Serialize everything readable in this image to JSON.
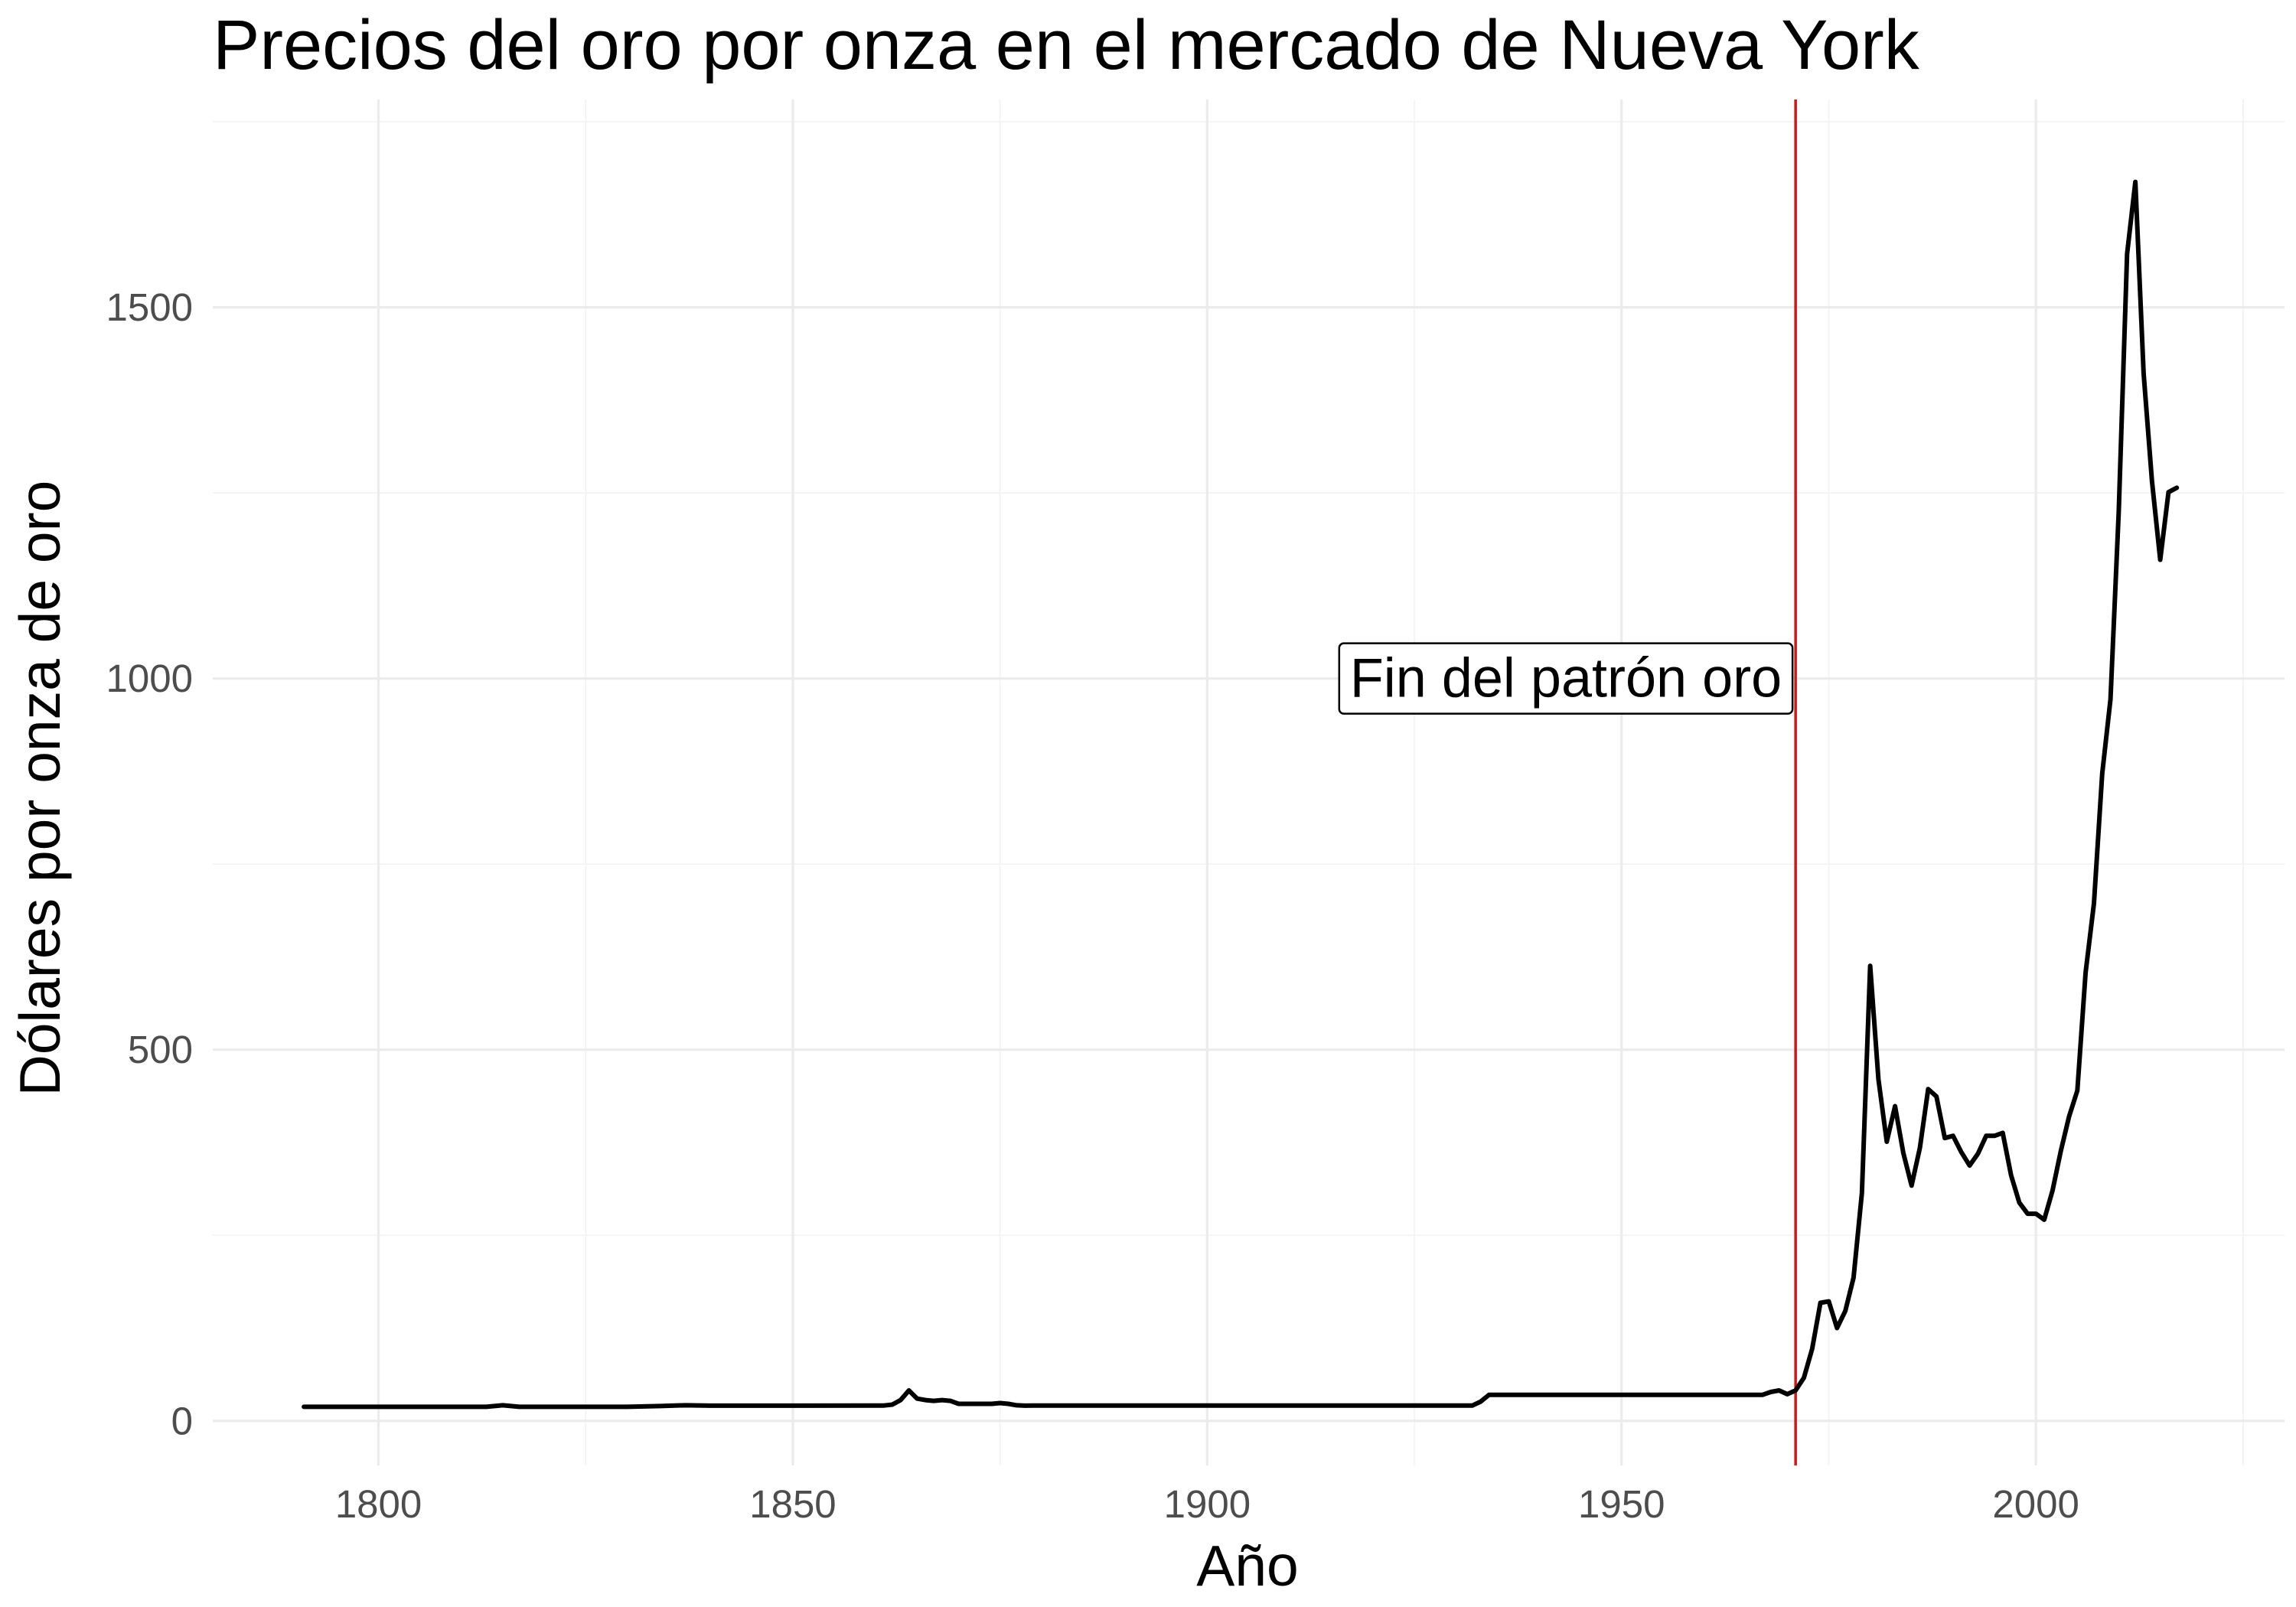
{
  "chart_data": {
    "type": "line",
    "title": "Precios del oro por onza en el mercado de Nueva York",
    "xlabel": "Año",
    "ylabel": "Dólares por onza de oro",
    "xlim": [
      1780,
      2030
    ],
    "ylim": [
      -60,
      1780
    ],
    "x_ticks": [
      1800,
      1850,
      1900,
      1950,
      2000
    ],
    "y_ticks": [
      0,
      500,
      1000,
      1500
    ],
    "x_tick_labels": [
      "1800",
      "1850",
      "1900",
      "1950",
      "2000"
    ],
    "y_tick_labels": [
      "0",
      "500",
      "1000",
      "1500"
    ],
    "grid": true,
    "colors": {
      "line": "#000000",
      "vline": "#dd1111",
      "grid": "#ebebeb"
    },
    "reference_line": {
      "x": 1971,
      "label": "Fin del patrón oro",
      "label_y": 1000
    },
    "series": [
      {
        "x": [
          1791,
          1800,
          1810,
          1813,
          1815,
          1817,
          1820,
          1830,
          1834,
          1837,
          1840,
          1850,
          1861,
          1862,
          1863,
          1864,
          1865,
          1866,
          1867,
          1868,
          1869,
          1870,
          1871,
          1872,
          1873,
          1874,
          1875,
          1876,
          1877,
          1878,
          1879,
          1880,
          1890,
          1900,
          1910,
          1920,
          1930,
          1932,
          1933,
          1934,
          1935,
          1940,
          1950,
          1960,
          1967,
          1968,
          1969,
          1970,
          1971,
          1972,
          1973,
          1974,
          1975,
          1976,
          1977,
          1978,
          1979,
          1980,
          1981,
          1982,
          1983,
          1984,
          1985,
          1986,
          1987,
          1988,
          1989,
          1990,
          1991,
          1992,
          1993,
          1994,
          1995,
          1996,
          1997,
          1998,
          1999,
          2000,
          2001,
          2002,
          2003,
          2004,
          2005,
          2006,
          2007,
          2008,
          2009,
          2010,
          2011,
          2012,
          2013,
          2014,
          2015,
          2016,
          2017
        ],
        "y": [
          19,
          19,
          19,
          19,
          21,
          19,
          19,
          19,
          20,
          21,
          20.5,
          20.5,
          20.7,
          22,
          28,
          41,
          30,
          28,
          27,
          28,
          27,
          23,
          23,
          23,
          23,
          23,
          24,
          23,
          21,
          20.5,
          20.7,
          20.7,
          20.7,
          20.7,
          20.7,
          20.7,
          20.7,
          20.7,
          26,
          35,
          35,
          35,
          35,
          35,
          35,
          39,
          41,
          36,
          41,
          58,
          97,
          159,
          161,
          125,
          148,
          193,
          307,
          613,
          460,
          376,
          424,
          361,
          317,
          368,
          447,
          437,
          381,
          384,
          362,
          344,
          360,
          384,
          384,
          388,
          331,
          294,
          279,
          279,
          271,
          310,
          363,
          410,
          445,
          604,
          697,
          872,
          972,
          1225,
          1572,
          1669,
          1411,
          1266,
          1160,
          1251,
          1257
        ]
      }
    ]
  }
}
